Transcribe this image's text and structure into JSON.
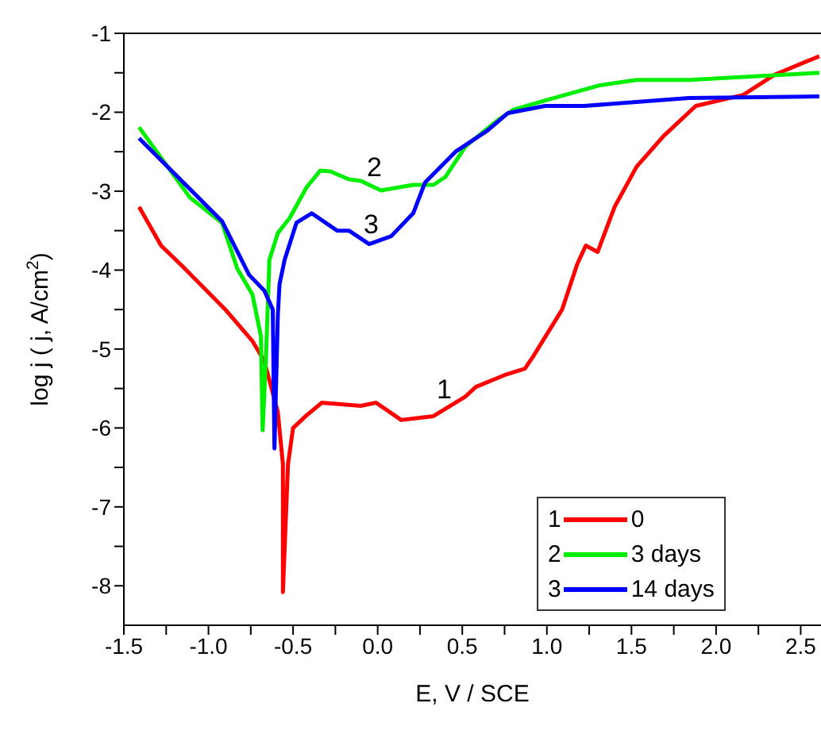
{
  "chart_data": {
    "type": "line",
    "xlabel": "E, V / SCE",
    "ylabel": "log j ( j, A/cm$^{2}$)",
    "xlim": [
      -1.5,
      2.62
    ],
    "ylim": [
      -8.5,
      -1
    ],
    "xticks": [
      {
        "value": -1.5,
        "label": "-1.5"
      },
      {
        "value": -1.25,
        "label": null
      },
      {
        "value": -1,
        "label": "-1.0"
      },
      {
        "value": -0.75,
        "label": null
      },
      {
        "value": -0.5,
        "label": "-0.5"
      },
      {
        "value": -0.25,
        "label": null
      },
      {
        "value": 0,
        "label": "0.0"
      },
      {
        "value": 0.25,
        "label": null
      },
      {
        "value": 0.5,
        "label": "0.5"
      },
      {
        "value": 0.75,
        "label": null
      },
      {
        "value": 1,
        "label": "1.0"
      },
      {
        "value": 1.25,
        "label": null
      },
      {
        "value": 1.5,
        "label": "1.5"
      },
      {
        "value": 1.75,
        "label": null
      },
      {
        "value": 2,
        "label": "2.0"
      },
      {
        "value": 2.25,
        "label": null
      },
      {
        "value": 2.5,
        "label": "2.5"
      }
    ],
    "yticks": [
      -1,
      {
        "value": -1.5,
        "label": null
      },
      -2,
      {
        "value": -2.5,
        "label": null
      },
      -3,
      {
        "value": -3.5,
        "label": null
      },
      -4,
      {
        "value": -4.5,
        "label": null
      },
      -5,
      {
        "value": -5.5,
        "label": null
      },
      -6,
      {
        "value": -6.5,
        "label": null
      },
      -7,
      {
        "value": -7.5,
        "label": null
      },
      -8
    ],
    "legend": "bottom right",
    "marker": "none",
    "line_style": "solid",
    "series": [
      {
        "name": "0",
        "color": "#ff0000",
        "x": [
          -1.41,
          -1.28,
          -1.14,
          -0.9,
          -0.74,
          -0.67,
          -0.59,
          -0.56,
          -0.56,
          -0.53,
          -0.5,
          -0.42,
          -0.33,
          -0.1,
          -0.01,
          0.14,
          0.33,
          0.52,
          0.58,
          0.75,
          0.87,
          0.92,
          1.09,
          1.18,
          1.23,
          1.3,
          1.4,
          1.53,
          1.69,
          1.88,
          2.16,
          2.35,
          2.61
        ],
        "values": [
          -3.2,
          -3.69,
          -3.98,
          -4.5,
          -4.9,
          -5.15,
          -5.8,
          -6.46,
          -8.08,
          -6.46,
          -6.0,
          -5.84,
          -5.68,
          -5.72,
          -5.68,
          -5.9,
          -5.85,
          -5.6,
          -5.48,
          -5.33,
          -5.25,
          -5.09,
          -4.5,
          -3.92,
          -3.69,
          -3.77,
          -3.2,
          -2.69,
          -2.3,
          -1.92,
          -1.78,
          -1.52,
          -1.29
        ]
      },
      {
        "name": "3 days",
        "color": "#00ee00",
        "x": [
          -1.41,
          -1.11,
          -0.92,
          -0.83,
          -0.74,
          -0.69,
          -0.68,
          -0.66,
          -0.64,
          -0.59,
          -0.52,
          -0.42,
          -0.34,
          -0.28,
          -0.17,
          -0.1,
          0.02,
          0.21,
          0.33,
          0.4,
          0.52,
          0.71,
          0.8,
          0.99,
          1.31,
          1.53,
          1.84,
          2.61
        ],
        "values": [
          -2.19,
          -3.08,
          -3.4,
          -3.98,
          -4.31,
          -4.84,
          -6.03,
          -5.1,
          -3.87,
          -3.53,
          -3.34,
          -2.95,
          -2.74,
          -2.75,
          -2.85,
          -2.87,
          -2.99,
          -2.92,
          -2.92,
          -2.82,
          -2.43,
          -2.1,
          -1.97,
          -1.85,
          -1.66,
          -1.59,
          -1.59,
          -1.5
        ]
      },
      {
        "name": "14 days",
        "color": "#0000ff",
        "x": [
          -1.41,
          -0.92,
          -0.76,
          -0.67,
          -0.62,
          -0.61,
          -0.59,
          -0.58,
          -0.55,
          -0.48,
          -0.39,
          -0.24,
          -0.17,
          -0.05,
          0.08,
          0.21,
          0.28,
          0.46,
          0.65,
          0.77,
          0.99,
          1.22,
          1.84,
          2.61
        ],
        "values": [
          -2.33,
          -3.38,
          -4.06,
          -4.26,
          -4.5,
          -6.26,
          -4.57,
          -4.18,
          -3.87,
          -3.4,
          -3.28,
          -3.5,
          -3.5,
          -3.67,
          -3.57,
          -3.28,
          -2.89,
          -2.5,
          -2.23,
          -2.01,
          -1.92,
          -1.92,
          -1.82,
          -1.8
        ]
      }
    ],
    "annotations": [
      "1",
      "2",
      "3"
    ]
  }
}
